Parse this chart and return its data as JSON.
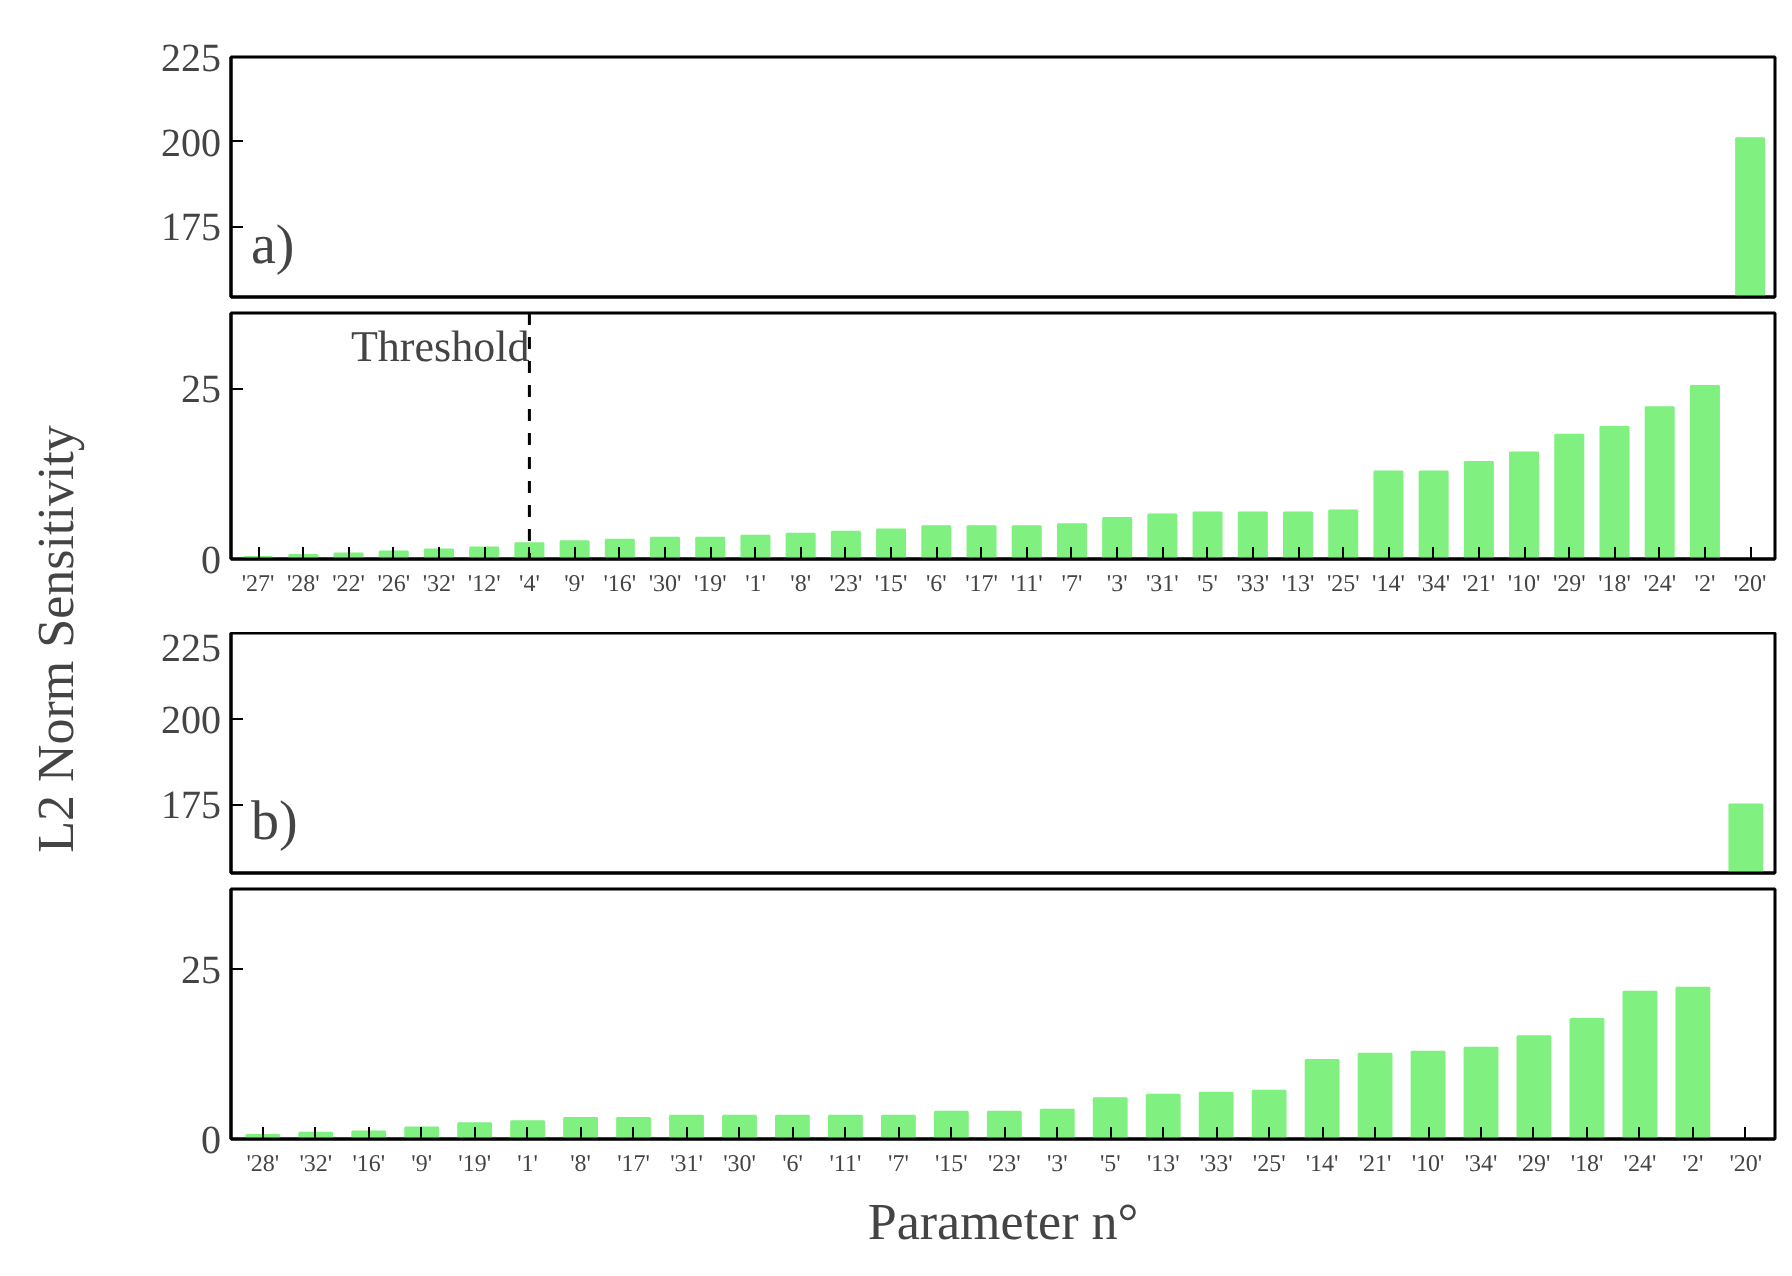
{
  "chart_data": [
    {
      "type": "bar",
      "categories": [
        "'27'",
        "'28'",
        "'22'",
        "'26'",
        "'32'",
        "'12'",
        "'4'",
        "'9'",
        "'16'",
        "'30'",
        "'19'",
        "'1'",
        "'8'",
        "'23'",
        "'15'",
        "'6'",
        "'17'",
        "'11'",
        "'7'",
        "'3'",
        "'31'",
        "'5'",
        "'33'",
        "'13'",
        "'25'",
        "'14'",
        "'34'",
        "'21'",
        "'10'",
        "'29'",
        "'18'",
        "'24'",
        "'2'",
        "'20'"
      ],
      "values": [
        null,
        null,
        null,
        null,
        null,
        null,
        null,
        null,
        null,
        null,
        null,
        null,
        null,
        null,
        null,
        null,
        null,
        null,
        null,
        null,
        null,
        null,
        null,
        null,
        null,
        null,
        null,
        null,
        null,
        null,
        null,
        null,
        null,
        201
      ],
      "color": "#80f080",
      "ylim": [
        154,
        225
      ],
      "yticks": [
        175,
        200,
        225
      ],
      "tick_labels": "y",
      "annotations": [
        "a)"
      ]
    },
    {
      "type": "bar",
      "categories": [
        "'27'",
        "'28'",
        "'22'",
        "'26'",
        "'32'",
        "'12'",
        "'4'",
        "'9'",
        "'16'",
        "'30'",
        "'19'",
        "'1'",
        "'8'",
        "'23'",
        "'15'",
        "'6'",
        "'17'",
        "'11'",
        "'7'",
        "'3'",
        "'31'",
        "'5'",
        "'33'",
        "'13'",
        "'25'",
        "'14'",
        "'34'",
        "'21'",
        "'10'",
        "'29'",
        "'18'",
        "'24'",
        "'2'",
        "'20'"
      ],
      "values": [
        0.3,
        0.6,
        0.8,
        1.1,
        1.4,
        1.7,
        2.3,
        2.6,
        2.8,
        3.1,
        3.1,
        3.4,
        3.7,
        4.0,
        4.3,
        4.8,
        4.8,
        4.8,
        5.1,
        6.0,
        6.5,
        6.8,
        6.8,
        6.8,
        7.1,
        12.8,
        12.8,
        14.2,
        15.6,
        18.2,
        19.3,
        22.2,
        25.3,
        null
      ],
      "color": "#80f080",
      "ylim": [
        0,
        36
      ],
      "yticks": [
        0,
        25
      ],
      "ylabel": "L2 Norm Sensitivity",
      "ref_lines": [
        {
          "axis": "x",
          "value": "'4'",
          "label": "Threshold",
          "line_style": "dashed",
          "color": "#000000"
        }
      ]
    },
    {
      "type": "bar",
      "categories": [
        "'28'",
        "'32'",
        "'16'",
        "'9'",
        "'19'",
        "'1'",
        "'8'",
        "'17'",
        "'31'",
        "'30'",
        "'6'",
        "'11'",
        "'7'",
        "'15'",
        "'23'",
        "'3'",
        "'5'",
        "'13'",
        "'33'",
        "'25'",
        "'14'",
        "'21'",
        "'10'",
        "'34'",
        "'29'",
        "'18'",
        "'24'",
        "'2'",
        "'20'"
      ],
      "values": [
        null,
        null,
        null,
        null,
        null,
        null,
        null,
        null,
        null,
        null,
        null,
        null,
        null,
        null,
        null,
        null,
        null,
        null,
        null,
        null,
        null,
        null,
        null,
        null,
        null,
        null,
        null,
        null,
        175
      ],
      "color": "#80f080",
      "ylim": [
        155,
        225
      ],
      "yticks": [
        175,
        200,
        225
      ],
      "tick_labels": "y",
      "annotations": [
        "b)"
      ]
    },
    {
      "type": "bar",
      "categories": [
        "'28'",
        "'32'",
        "'16'",
        "'9'",
        "'19'",
        "'1'",
        "'8'",
        "'17'",
        "'31'",
        "'30'",
        "'6'",
        "'11'",
        "'7'",
        "'15'",
        "'23'",
        "'3'",
        "'5'",
        "'13'",
        "'33'",
        "'25'",
        "'14'",
        "'21'",
        "'10'",
        "'34'",
        "'29'",
        "'18'",
        "'24'",
        "'2'",
        "'20'"
      ],
      "values": [
        0.6,
        0.9,
        1.1,
        1.7,
        2.3,
        2.6,
        3.1,
        3.1,
        3.4,
        3.4,
        3.4,
        3.4,
        3.4,
        4.0,
        4.0,
        4.3,
        6.0,
        6.5,
        6.8,
        7.1,
        11.6,
        12.5,
        12.8,
        13.4,
        15.1,
        17.6,
        21.6,
        22.2,
        null
      ],
      "color": "#80f080",
      "ylim": [
        0,
        36.7
      ],
      "yticks": [
        0,
        25
      ],
      "xlabel": "Parameter n°"
    }
  ]
}
